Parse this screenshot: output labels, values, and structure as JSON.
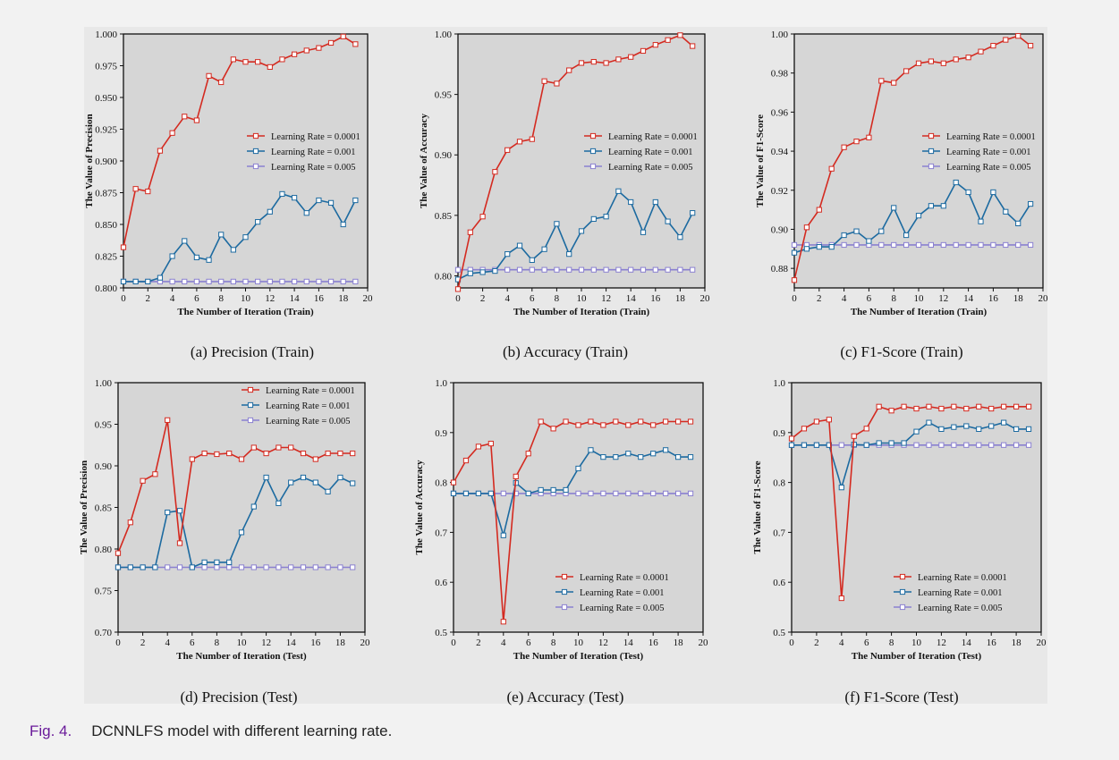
{
  "caption": {
    "number": "Fig. 4.",
    "text": "DCNNLFS model with different learning rate."
  },
  "colors": {
    "lr_0001": "#d42a20",
    "lr_001": "#1c6aa0",
    "lr_005": "#8a80d0",
    "plot_bg": "#d6d6d6"
  },
  "chart_data": [
    {
      "id": "a",
      "type": "line",
      "caption": "(a)  Precision (Train)",
      "xlabel": "The Number of Iteration (Train)",
      "ylabel": "The Value of Precision",
      "xlim": [
        0,
        20
      ],
      "ylim": [
        0.8,
        1.0
      ],
      "xticks": [
        0,
        2,
        4,
        6,
        8,
        10,
        12,
        14,
        16,
        18,
        20
      ],
      "yticks": [
        "0.800",
        "0.825",
        "0.850",
        "0.875",
        "0.900",
        "0.925",
        "0.950",
        "0.975",
        "1.000"
      ],
      "legend": "right-middle",
      "series": [
        {
          "name": "Learning Rate = 0.0001",
          "color": "#d42a20",
          "x": [
            0,
            1,
            2,
            3,
            4,
            5,
            6,
            7,
            8,
            9,
            10,
            11,
            12,
            13,
            14,
            15,
            16,
            17,
            18,
            19
          ],
          "y": [
            0.832,
            0.878,
            0.876,
            0.908,
            0.922,
            0.935,
            0.932,
            0.967,
            0.962,
            0.98,
            0.978,
            0.978,
            0.974,
            0.98,
            0.984,
            0.987,
            0.989,
            0.993,
            0.998,
            0.992
          ]
        },
        {
          "name": "Learning Rate = 0.001",
          "color": "#1c6aa0",
          "x": [
            0,
            1,
            2,
            3,
            4,
            5,
            6,
            7,
            8,
            9,
            10,
            11,
            12,
            13,
            14,
            15,
            16,
            17,
            18,
            19
          ],
          "y": [
            0.805,
            0.805,
            0.805,
            0.808,
            0.825,
            0.837,
            0.824,
            0.822,
            0.842,
            0.83,
            0.84,
            0.852,
            0.86,
            0.874,
            0.871,
            0.859,
            0.869,
            0.867,
            0.85,
            0.869
          ]
        },
        {
          "name": "Learning Rate = 0.005",
          "color": "#8a80d0",
          "x": [
            0,
            1,
            2,
            3,
            4,
            5,
            6,
            7,
            8,
            9,
            10,
            11,
            12,
            13,
            14,
            15,
            16,
            17,
            18,
            19
          ],
          "y": [
            0.805,
            0.805,
            0.805,
            0.805,
            0.805,
            0.805,
            0.805,
            0.805,
            0.805,
            0.805,
            0.805,
            0.805,
            0.805,
            0.805,
            0.805,
            0.805,
            0.805,
            0.805,
            0.805,
            0.805
          ]
        }
      ]
    },
    {
      "id": "b",
      "type": "line",
      "caption": "(b)  Accuracy (Train)",
      "xlabel": "The Number of Iteration (Train)",
      "ylabel": "The Value of Accuracy",
      "xlim": [
        0,
        20
      ],
      "ylim": [
        0.79,
        1.0
      ],
      "xticks": [
        0,
        2,
        4,
        6,
        8,
        10,
        12,
        14,
        16,
        18,
        20
      ],
      "yticks": [
        "0.80",
        "0.85",
        "0.90",
        "0.95",
        "1.00"
      ],
      "legend": "right-middle",
      "series": [
        {
          "name": "Learning Rate = 0.0001",
          "color": "#d42a20",
          "x": [
            0,
            1,
            2,
            3,
            4,
            5,
            6,
            7,
            8,
            9,
            10,
            11,
            12,
            13,
            14,
            15,
            16,
            17,
            18,
            19
          ],
          "y": [
            0.789,
            0.836,
            0.849,
            0.886,
            0.904,
            0.911,
            0.913,
            0.961,
            0.959,
            0.97,
            0.976,
            0.977,
            0.976,
            0.979,
            0.981,
            0.986,
            0.991,
            0.995,
            0.999,
            0.99
          ]
        },
        {
          "name": "Learning Rate = 0.001",
          "color": "#1c6aa0",
          "x": [
            0,
            1,
            2,
            3,
            4,
            5,
            6,
            7,
            8,
            9,
            10,
            11,
            12,
            13,
            14,
            15,
            16,
            17,
            18,
            19
          ],
          "y": [
            0.797,
            0.802,
            0.803,
            0.804,
            0.818,
            0.825,
            0.813,
            0.822,
            0.843,
            0.818,
            0.837,
            0.847,
            0.849,
            0.87,
            0.861,
            0.836,
            0.861,
            0.845,
            0.832,
            0.852
          ]
        },
        {
          "name": "Learning Rate = 0.005",
          "color": "#8a80d0",
          "x": [
            0,
            1,
            2,
            3,
            4,
            5,
            6,
            7,
            8,
            9,
            10,
            11,
            12,
            13,
            14,
            15,
            16,
            17,
            18,
            19
          ],
          "y": [
            0.805,
            0.805,
            0.805,
            0.805,
            0.805,
            0.805,
            0.805,
            0.805,
            0.805,
            0.805,
            0.805,
            0.805,
            0.805,
            0.805,
            0.805,
            0.805,
            0.805,
            0.805,
            0.805,
            0.805
          ]
        }
      ]
    },
    {
      "id": "c",
      "type": "line",
      "caption": "(c)  F1-Score (Train)",
      "xlabel": "The Number of Iteration (Train)",
      "ylabel": "The Value of F1-Score",
      "xlim": [
        0,
        20
      ],
      "ylim": [
        0.87,
        1.0
      ],
      "xticks": [
        0,
        2,
        4,
        6,
        8,
        10,
        12,
        14,
        16,
        18,
        20
      ],
      "yticks": [
        "0.88",
        "0.90",
        "0.92",
        "0.94",
        "0.96",
        "0.98",
        "1.00"
      ],
      "legend": "right-middle",
      "series": [
        {
          "name": "Learning Rate = 0.0001",
          "color": "#d42a20",
          "x": [
            0,
            1,
            2,
            3,
            4,
            5,
            6,
            7,
            8,
            9,
            10,
            11,
            12,
            13,
            14,
            15,
            16,
            17,
            18,
            19
          ],
          "y": [
            0.874,
            0.901,
            0.91,
            0.931,
            0.942,
            0.945,
            0.947,
            0.976,
            0.975,
            0.981,
            0.985,
            0.986,
            0.985,
            0.987,
            0.988,
            0.991,
            0.994,
            0.997,
            0.999,
            0.994
          ]
        },
        {
          "name": "Learning Rate = 0.001",
          "color": "#1c6aa0",
          "x": [
            0,
            1,
            2,
            3,
            4,
            5,
            6,
            7,
            8,
            9,
            10,
            11,
            12,
            13,
            14,
            15,
            16,
            17,
            18,
            19
          ],
          "y": [
            0.888,
            0.89,
            0.891,
            0.891,
            0.897,
            0.899,
            0.894,
            0.899,
            0.911,
            0.897,
            0.907,
            0.912,
            0.912,
            0.924,
            0.919,
            0.904,
            0.919,
            0.909,
            0.903,
            0.913
          ]
        },
        {
          "name": "Learning Rate = 0.005",
          "color": "#8a80d0",
          "x": [
            0,
            1,
            2,
            3,
            4,
            5,
            6,
            7,
            8,
            9,
            10,
            11,
            12,
            13,
            14,
            15,
            16,
            17,
            18,
            19
          ],
          "y": [
            0.892,
            0.892,
            0.892,
            0.892,
            0.892,
            0.892,
            0.892,
            0.892,
            0.892,
            0.892,
            0.892,
            0.892,
            0.892,
            0.892,
            0.892,
            0.892,
            0.892,
            0.892,
            0.892,
            0.892
          ]
        }
      ]
    },
    {
      "id": "d",
      "type": "line",
      "caption": "(d)  Precision (Test)",
      "xlabel": "The Number of Iteration (Test)",
      "ylabel": "The Value of Precision",
      "xlim": [
        0,
        20
      ],
      "ylim": [
        0.7,
        1.0
      ],
      "xticks": [
        0,
        2,
        4,
        6,
        8,
        10,
        12,
        14,
        16,
        18,
        20
      ],
      "yticks": [
        "0.70",
        "0.75",
        "0.80",
        "0.85",
        "0.90",
        "0.95",
        "1.00"
      ],
      "legend": "top-right",
      "series": [
        {
          "name": "Learning Rate = 0.0001",
          "color": "#d42a20",
          "x": [
            0,
            1,
            2,
            3,
            4,
            5,
            6,
            7,
            8,
            9,
            10,
            11,
            12,
            13,
            14,
            15,
            16,
            17,
            18,
            19
          ],
          "y": [
            0.795,
            0.832,
            0.882,
            0.89,
            0.955,
            0.807,
            0.908,
            0.915,
            0.914,
            0.915,
            0.908,
            0.922,
            0.915,
            0.922,
            0.922,
            0.915,
            0.908,
            0.915,
            0.915,
            0.915
          ]
        },
        {
          "name": "Learning Rate = 0.001",
          "color": "#1c6aa0",
          "x": [
            0,
            1,
            2,
            3,
            4,
            5,
            6,
            7,
            8,
            9,
            10,
            11,
            12,
            13,
            14,
            15,
            16,
            17,
            18,
            19
          ],
          "y": [
            0.778,
            0.778,
            0.778,
            0.778,
            0.844,
            0.846,
            0.778,
            0.784,
            0.784,
            0.784,
            0.82,
            0.851,
            0.886,
            0.855,
            0.88,
            0.886,
            0.88,
            0.869,
            0.886,
            0.879
          ]
        },
        {
          "name": "Learning Rate = 0.005",
          "color": "#8a80d0",
          "x": [
            0,
            1,
            2,
            3,
            4,
            5,
            6,
            7,
            8,
            9,
            10,
            11,
            12,
            13,
            14,
            15,
            16,
            17,
            18,
            19
          ],
          "y": [
            0.778,
            0.778,
            0.778,
            0.778,
            0.778,
            0.778,
            0.778,
            0.778,
            0.778,
            0.778,
            0.778,
            0.778,
            0.778,
            0.778,
            0.778,
            0.778,
            0.778,
            0.778,
            0.778,
            0.778
          ]
        }
      ]
    },
    {
      "id": "e",
      "type": "line",
      "caption": "(e)  Accuracy (Test)",
      "xlabel": "The Number of Iteration (Test)",
      "ylabel": "The Value of Accuracy",
      "xlim": [
        0,
        20
      ],
      "ylim": [
        0.5,
        1.0
      ],
      "xticks": [
        0,
        2,
        4,
        6,
        8,
        10,
        12,
        14,
        16,
        18,
        20
      ],
      "yticks": [
        "0.5",
        "0.6",
        "0.7",
        "0.8",
        "0.9",
        "1.0"
      ],
      "legend": "bottom-right",
      "series": [
        {
          "name": "Learning Rate = 0.0001",
          "color": "#d42a20",
          "x": [
            0,
            1,
            2,
            3,
            4,
            5,
            6,
            7,
            8,
            9,
            10,
            11,
            12,
            13,
            14,
            15,
            16,
            17,
            18,
            19
          ],
          "y": [
            0.8,
            0.844,
            0.872,
            0.878,
            0.521,
            0.812,
            0.858,
            0.922,
            0.908,
            0.922,
            0.915,
            0.922,
            0.915,
            0.922,
            0.915,
            0.922,
            0.915,
            0.922,
            0.922,
            0.922
          ]
        },
        {
          "name": "Learning Rate = 0.001",
          "color": "#1c6aa0",
          "x": [
            0,
            1,
            2,
            3,
            4,
            5,
            6,
            7,
            8,
            9,
            10,
            11,
            12,
            13,
            14,
            15,
            16,
            17,
            18,
            19
          ],
          "y": [
            0.778,
            0.778,
            0.778,
            0.778,
            0.694,
            0.799,
            0.778,
            0.785,
            0.785,
            0.785,
            0.828,
            0.865,
            0.851,
            0.851,
            0.858,
            0.851,
            0.858,
            0.865,
            0.851,
            0.851
          ]
        },
        {
          "name": "Learning Rate = 0.005",
          "color": "#8a80d0",
          "x": [
            0,
            1,
            2,
            3,
            4,
            5,
            6,
            7,
            8,
            9,
            10,
            11,
            12,
            13,
            14,
            15,
            16,
            17,
            18,
            19
          ],
          "y": [
            0.778,
            0.778,
            0.778,
            0.778,
            0.778,
            0.778,
            0.778,
            0.778,
            0.778,
            0.778,
            0.778,
            0.778,
            0.778,
            0.778,
            0.778,
            0.778,
            0.778,
            0.778,
            0.778,
            0.778
          ]
        }
      ]
    },
    {
      "id": "f",
      "type": "line",
      "caption": "(f)  F1-Score (Test)",
      "xlabel": "The Number of Iteration (Test)",
      "ylabel": "The Value of F1-Score",
      "xlim": [
        0,
        20
      ],
      "ylim": [
        0.5,
        1.0
      ],
      "xticks": [
        0,
        2,
        4,
        6,
        8,
        10,
        12,
        14,
        16,
        18,
        20
      ],
      "yticks": [
        "0.5",
        "0.6",
        "0.7",
        "0.8",
        "0.9",
        "1.0"
      ],
      "legend": "bottom-right",
      "series": [
        {
          "name": "Learning Rate = 0.0001",
          "color": "#d42a20",
          "x": [
            0,
            1,
            2,
            3,
            4,
            5,
            6,
            7,
            8,
            9,
            10,
            11,
            12,
            13,
            14,
            15,
            16,
            17,
            18,
            19
          ],
          "y": [
            0.888,
            0.908,
            0.922,
            0.926,
            0.568,
            0.893,
            0.908,
            0.952,
            0.944,
            0.952,
            0.948,
            0.952,
            0.948,
            0.952,
            0.948,
            0.952,
            0.948,
            0.952,
            0.952,
            0.952
          ]
        },
        {
          "name": "Learning Rate = 0.001",
          "color": "#1c6aa0",
          "x": [
            0,
            1,
            2,
            3,
            4,
            5,
            6,
            7,
            8,
            9,
            10,
            11,
            12,
            13,
            14,
            15,
            16,
            17,
            18,
            19
          ],
          "y": [
            0.875,
            0.875,
            0.875,
            0.875,
            0.79,
            0.876,
            0.875,
            0.879,
            0.879,
            0.879,
            0.902,
            0.92,
            0.907,
            0.911,
            0.913,
            0.907,
            0.913,
            0.92,
            0.907,
            0.907
          ]
        },
        {
          "name": "Learning Rate = 0.005",
          "color": "#8a80d0",
          "x": [
            0,
            1,
            2,
            3,
            4,
            5,
            6,
            7,
            8,
            9,
            10,
            11,
            12,
            13,
            14,
            15,
            16,
            17,
            18,
            19
          ],
          "y": [
            0.875,
            0.875,
            0.875,
            0.875,
            0.875,
            0.875,
            0.875,
            0.875,
            0.875,
            0.875,
            0.875,
            0.875,
            0.875,
            0.875,
            0.875,
            0.875,
            0.875,
            0.875,
            0.875,
            0.875
          ]
        }
      ]
    }
  ]
}
